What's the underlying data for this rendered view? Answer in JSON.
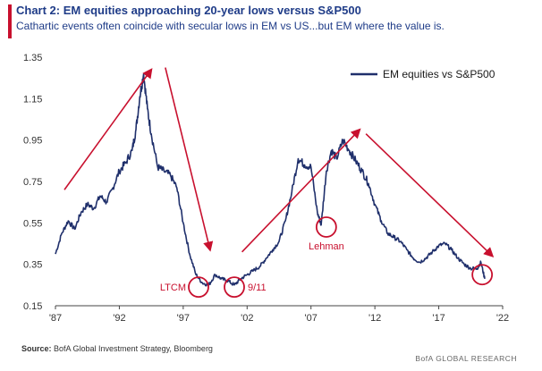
{
  "header": {
    "title": "Chart 2: EM equities approaching 20-year lows versus S&P500",
    "subtitle": "Cathartic events often coincide with secular lows in EM vs US...but EM where the value is."
  },
  "footer": {
    "source_label": "Source:",
    "source_text": " BofA Global Investment Strategy, Bloomberg",
    "brand": "BofA GLOBAL RESEARCH"
  },
  "colors": {
    "series": "#1f2f6b",
    "annotation": "#c8102e",
    "axis": "#444444"
  },
  "chart_data": {
    "type": "line",
    "ylim": [
      0.15,
      1.35
    ],
    "yticks": [
      0.15,
      0.35,
      0.55,
      0.75,
      0.95,
      1.15,
      1.35
    ],
    "ytick_labels": [
      "0.15",
      "0.35",
      "0.55",
      "0.75",
      "0.95",
      "1.15",
      "1.35"
    ],
    "xlim": [
      1987,
      2022
    ],
    "xticks": [
      1987,
      1992,
      1997,
      2002,
      2007,
      2012,
      2017,
      2022
    ],
    "xtick_labels": [
      "'87",
      "'92",
      "'97",
      "'02",
      "'07",
      "'12",
      "'17",
      "'22"
    ],
    "legend": {
      "position": "top-right",
      "label": "EM equities vs S&P500"
    },
    "series": [
      {
        "name": "EM equities vs S&P500",
        "x": [
          1987.0,
          1987.5,
          1988.0,
          1988.5,
          1989.0,
          1989.5,
          1990.0,
          1990.5,
          1991.0,
          1991.5,
          1992.0,
          1992.5,
          1993.0,
          1993.3,
          1993.6,
          1993.9,
          1994.2,
          1994.5,
          1995.0,
          1995.5,
          1996.0,
          1996.5,
          1997.0,
          1997.5,
          1998.0,
          1998.5,
          1999.0,
          1999.5,
          2000.0,
          2000.5,
          2001.0,
          2001.5,
          2002.0,
          2002.5,
          2003.0,
          2003.5,
          2004.0,
          2004.5,
          2005.0,
          2005.5,
          2006.0,
          2006.5,
          2007.0,
          2007.5,
          2007.8,
          2008.2,
          2008.6,
          2009.0,
          2009.5,
          2010.0,
          2010.5,
          2011.0,
          2011.5,
          2012.0,
          2012.5,
          2013.0,
          2013.5,
          2014.0,
          2014.5,
          2015.0,
          2015.5,
          2016.0,
          2016.5,
          2017.0,
          2017.5,
          2018.0,
          2018.5,
          2019.0,
          2019.5,
          2020.0,
          2020.3,
          2020.6
        ],
        "y": [
          0.4,
          0.5,
          0.56,
          0.52,
          0.6,
          0.64,
          0.62,
          0.68,
          0.65,
          0.72,
          0.8,
          0.84,
          0.9,
          1.0,
          1.16,
          1.27,
          1.1,
          0.98,
          0.82,
          0.8,
          0.78,
          0.72,
          0.55,
          0.4,
          0.3,
          0.26,
          0.25,
          0.3,
          0.28,
          0.27,
          0.25,
          0.28,
          0.3,
          0.32,
          0.34,
          0.38,
          0.42,
          0.46,
          0.56,
          0.7,
          0.86,
          0.83,
          0.82,
          0.6,
          0.54,
          0.8,
          0.9,
          0.86,
          0.95,
          0.9,
          0.85,
          0.8,
          0.74,
          0.64,
          0.56,
          0.5,
          0.48,
          0.46,
          0.42,
          0.38,
          0.36,
          0.38,
          0.41,
          0.44,
          0.45,
          0.42,
          0.38,
          0.35,
          0.33,
          0.33,
          0.36,
          0.28
        ]
      }
    ],
    "annotations": [
      {
        "label": "LTCM",
        "x": 1998.2,
        "y": 0.24
      },
      {
        "label": "9/11",
        "x": 2001.0,
        "y": 0.24
      },
      {
        "label": "Lehman",
        "x": 2008.2,
        "y": 0.53
      },
      {
        "label": "",
        "x": 2020.4,
        "y": 0.3
      }
    ],
    "arrows": [
      {
        "from": [
          1987.7,
          0.71
        ],
        "to": [
          1994.5,
          1.29
        ]
      },
      {
        "from": [
          1995.6,
          1.3
        ],
        "to": [
          1999.1,
          0.42
        ]
      },
      {
        "from": [
          2001.6,
          0.41
        ],
        "to": [
          2010.8,
          1.0
        ]
      },
      {
        "from": [
          2011.3,
          0.98
        ],
        "to": [
          2021.2,
          0.39
        ]
      }
    ]
  }
}
